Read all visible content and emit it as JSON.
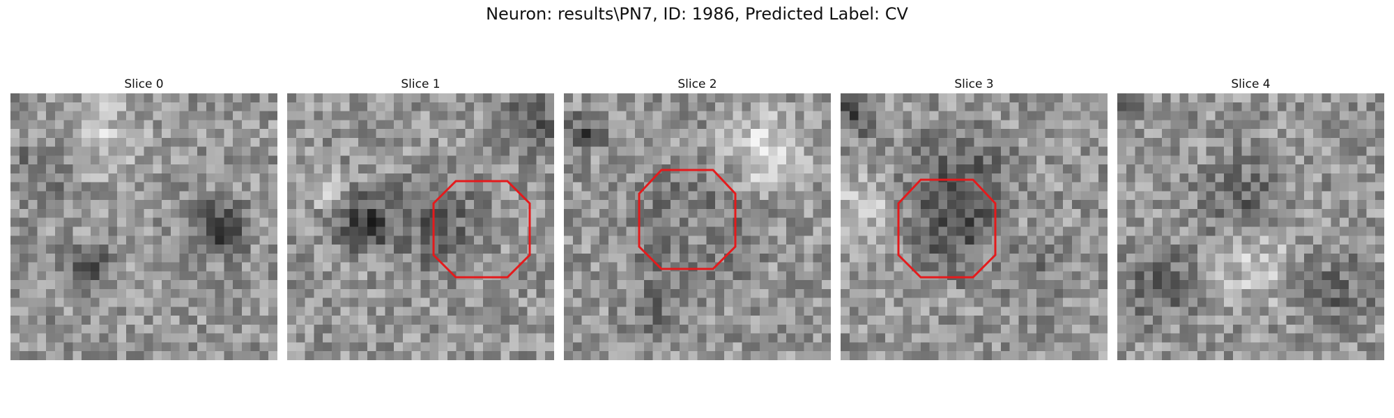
{
  "figure": {
    "title": "Neuron: results\\PN7, ID: 1986, Predicted Label: CV"
  },
  "slices": [
    {
      "title": "Slice 0",
      "marker": false
    },
    {
      "title": "Slice 1",
      "marker": true
    },
    {
      "title": "Slice 2",
      "marker": true
    },
    {
      "title": "Slice 3",
      "marker": true
    },
    {
      "title": "Slice 4",
      "marker": false
    }
  ],
  "colors": {
    "marker": "#e41a1c",
    "background": "#ffffff"
  }
}
